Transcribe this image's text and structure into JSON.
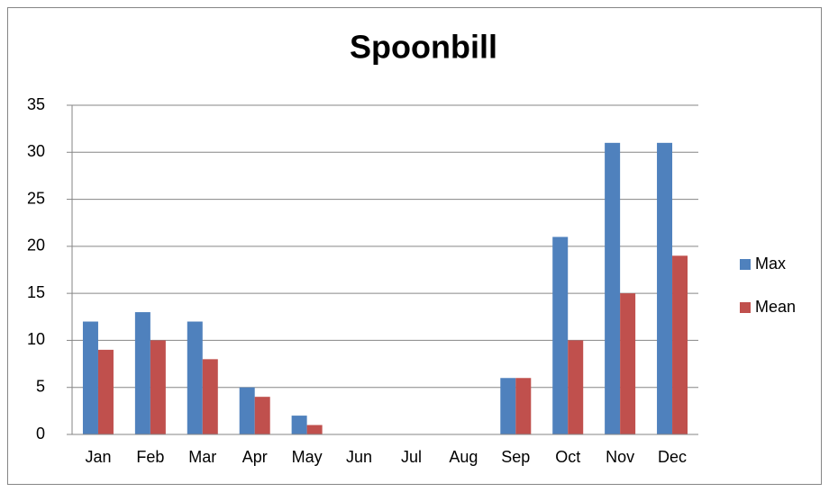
{
  "chart_data": {
    "type": "bar",
    "title": "Spoonbill",
    "categories": [
      "Jan",
      "Feb",
      "Mar",
      "Apr",
      "May",
      "Jun",
      "Jul",
      "Aug",
      "Sep",
      "Oct",
      "Nov",
      "Dec"
    ],
    "series": [
      {
        "name": "Max",
        "color": "#4f81bd",
        "values": [
          12,
          13,
          12,
          5,
          2,
          0,
          0,
          0,
          6,
          21,
          31,
          31
        ]
      },
      {
        "name": "Mean",
        "color": "#c0504d",
        "values": [
          9,
          10,
          8,
          4,
          1,
          0,
          0,
          0,
          6,
          10,
          15,
          19
        ]
      }
    ],
    "ylim": [
      0,
      35
    ],
    "yticks": [
      0,
      5,
      10,
      15,
      20,
      25,
      30,
      35
    ],
    "grid": true,
    "legend": "right"
  }
}
